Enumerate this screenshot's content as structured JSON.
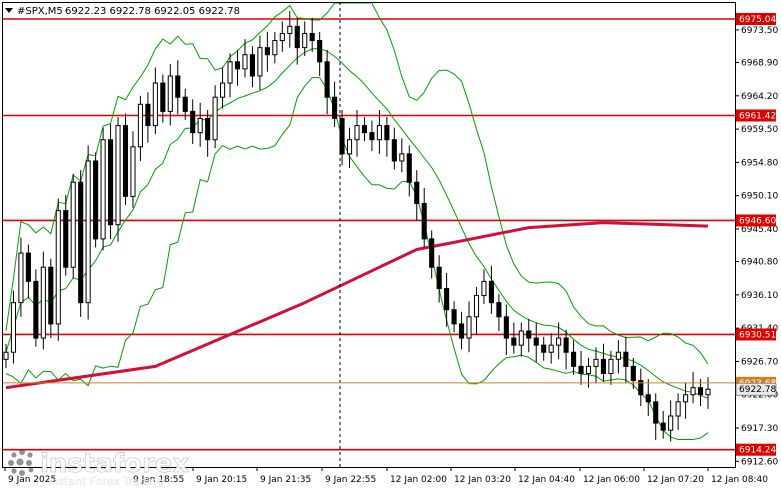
{
  "header": {
    "symbol": "#SPX,M5",
    "ohlc": "6922.23 6922.78 6922.05 6922.78"
  },
  "colors": {
    "candle": "#000000",
    "bollinger": "#00a000",
    "moving_average": "#d0103a",
    "level": "#e00000",
    "current_price": "#d08020",
    "price_tag_bg": "#e8e8e8",
    "level_tag_bg": "#e00000"
  },
  "watermark": {
    "brand": "instaforex",
    "tagline": "Instant Forex Trading"
  },
  "chart_data": {
    "type": "line",
    "instrument": "#SPX",
    "timeframe": "M5",
    "y_ticks": [
      6973.5,
      6968.9,
      6964.2,
      6959.5,
      6954.8,
      6950.1,
      6945.4,
      6940.8,
      6936.1,
      6931.4,
      6926.7,
      6922.0,
      6917.3,
      6912.6
    ],
    "ylim": [
      6911.8,
      6977.3
    ],
    "x_tick_labels": [
      "9 Jan 2025",
      "9 Jan 18:55",
      "9 Jan 20:15",
      "9 Jan 21:35",
      "9 Jan 22:55",
      "12 Jan 02:00",
      "12 Jan 03:20",
      "12 Jan 04:40",
      "12 Jan 06:00",
      "12 Jan 07:20",
      "12 Jan 08:40"
    ],
    "levels": [
      {
        "value": 6975.04,
        "label": "6975.04"
      },
      {
        "value": 6961.42,
        "label": "6961.42"
      },
      {
        "value": 6946.6,
        "label": "6946.60"
      },
      {
        "value": 6930.51,
        "label": "6930.51"
      },
      {
        "value": 6914.24,
        "label": "6914.24"
      }
    ],
    "current_price": {
      "value": 6922.78,
      "label": "6922.78"
    },
    "ask_price": {
      "value": 6923.68,
      "label": "6923.68"
    },
    "close_series": [
      6928,
      6935,
      6942,
      6938,
      6930,
      6940,
      6932,
      6948,
      6940,
      6952,
      6935,
      6955,
      6944,
      6958,
      6946,
      6960,
      6950,
      6957,
      6963,
      6960,
      6966,
      6962,
      6967,
      6964,
      6962,
      6959,
      6961,
      6958,
      6964,
      6966,
      6969,
      6968,
      6970,
      6967,
      6971,
      6970,
      6972,
      6973,
      6974,
      6971,
      6973,
      6972,
      6969,
      6964,
      6961,
      6956,
      6958,
      6960,
      6959,
      6958,
      6960,
      6958,
      6955,
      6956,
      6952,
      6949,
      6944,
      6940,
      6937,
      6934,
      6932,
      6930,
      6933,
      6936,
      6938,
      6935,
      6933,
      6930,
      6929,
      6931,
      6930,
      6929,
      6928,
      6929,
      6930,
      6928,
      6926,
      6925,
      6926,
      6927,
      6925,
      6927,
      6928,
      6926,
      6924,
      6922,
      6921,
      6918,
      6917,
      6919,
      6921,
      6922,
      6923,
      6922,
      6922.78
    ],
    "sma_series": [
      {
        "x": 0,
        "y": 6923.0
      },
      {
        "x": 20,
        "y": 6926.0
      },
      {
        "x": 40,
        "y": 6935.0
      },
      {
        "x": 55,
        "y": 6942.5
      },
      {
        "x": 60,
        "y": 6943.5
      },
      {
        "x": 70,
        "y": 6945.6
      },
      {
        "x": 80,
        "y": 6946.3
      },
      {
        "x": 94,
        "y": 6945.8
      }
    ]
  }
}
